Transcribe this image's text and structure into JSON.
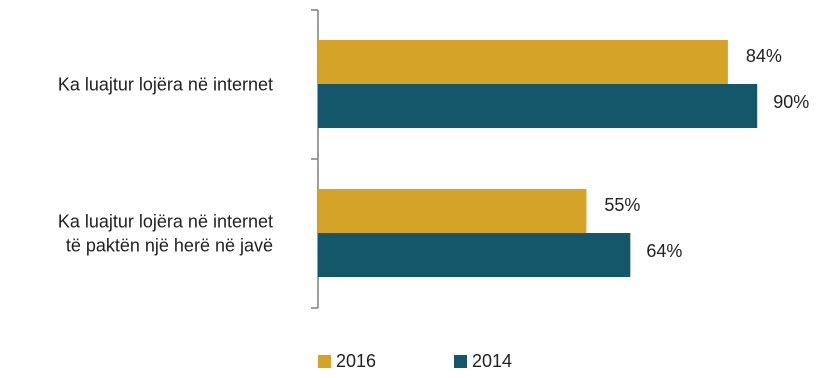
{
  "chart_data": {
    "type": "bar",
    "orientation": "horizontal",
    "categories": [
      [
        "Ka luajtur lojëra në internet"
      ],
      [
        "Ka luajtur lojëra në internet",
        "të paktën një herë në javë"
      ]
    ],
    "series": [
      {
        "name": "2016",
        "values": [
          84,
          55
        ],
        "labels": [
          "84%",
          "55%"
        ],
        "color": "#d6a329"
      },
      {
        "name": "2014",
        "values": [
          90,
          64
        ],
        "labels": [
          "90%",
          "64%"
        ],
        "color": "#14566a"
      }
    ],
    "xlim": [
      0,
      100
    ],
    "grid": false,
    "legend": "bottom-center"
  }
}
